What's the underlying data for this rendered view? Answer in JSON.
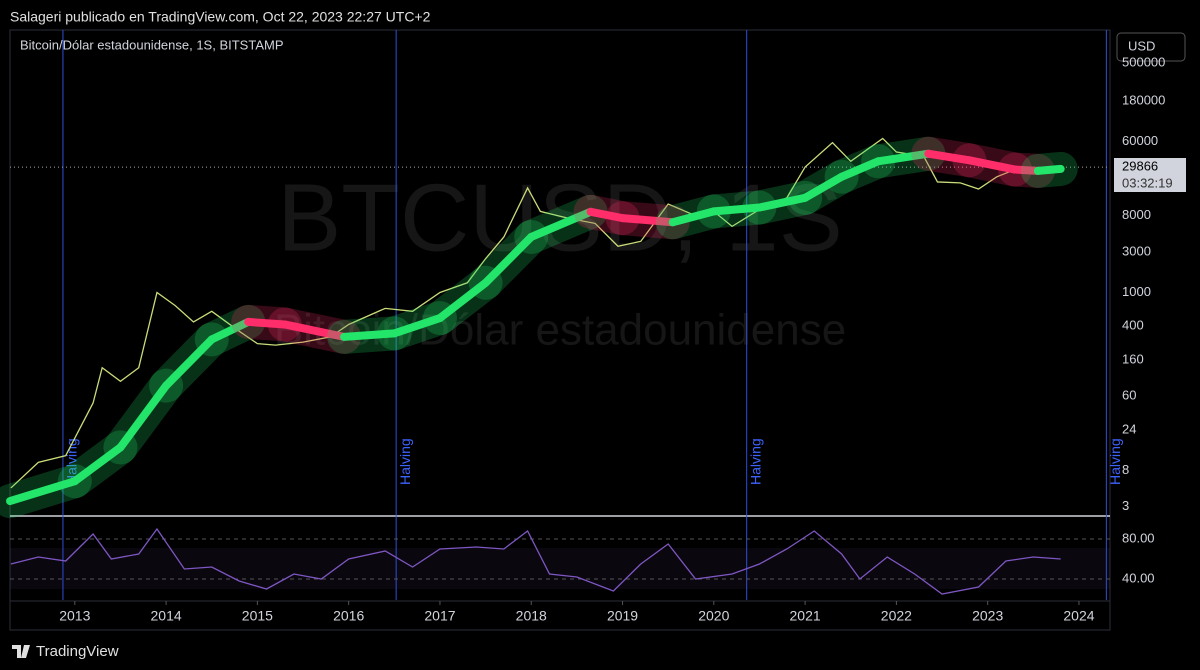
{
  "header": {
    "publisher": "Salageri publicado en TradingView.com, Oct 22, 2023 22:27 UTC+2",
    "symbol": "Bitcoin/Dólar estadounidense, 1S, BITSTAMP",
    "currency": "USD",
    "countdown": "03:32:19",
    "watermark_symbol": "BTCUSD, 1S",
    "watermark_name": "Bitcoin/Dólar estadounidense"
  },
  "footer": {
    "brand": "TradingView"
  },
  "chart_data": [
    {
      "type": "line",
      "log_y": true,
      "xlim": [
        2012.29,
        2024.34
      ],
      "xticks": [
        2013,
        2014,
        2015,
        2016,
        2017,
        2018,
        2019,
        2020,
        2021,
        2022,
        2023,
        2024
      ],
      "ylim": [
        2.4,
        1230000
      ],
      "yticks": [
        500000,
        180000,
        60000,
        8000,
        3000,
        1000,
        400,
        160,
        60,
        24,
        8,
        3
      ],
      "annotations": [
        {
          "x": 2012.87,
          "label": "Halving"
        },
        {
          "x": 2016.52,
          "label": "Halving"
        },
        {
          "x": 2020.36,
          "label": "Halving"
        },
        {
          "x": 2024.3,
          "label": "Halving"
        }
      ],
      "series": [
        {
          "color": "#c8dc78",
          "x": [
            2012.3,
            2012.6,
            2012.9,
            2013.2,
            2013.3,
            2013.5,
            2013.7,
            2013.9,
            2014.1,
            2014.3,
            2014.5,
            2014.8,
            2015.0,
            2015.2,
            2015.5,
            2015.8,
            2016.0,
            2016.4,
            2016.7,
            2017.0,
            2017.3,
            2017.5,
            2017.7,
            2017.96,
            2018.1,
            2018.4,
            2018.7,
            2018.95,
            2019.2,
            2019.5,
            2019.8,
            2020.0,
            2020.2,
            2020.5,
            2020.8,
            2021.0,
            2021.3,
            2021.5,
            2021.85,
            2022.0,
            2022.3,
            2022.45,
            2022.7,
            2022.9,
            2023.1,
            2023.3,
            2023.6,
            2023.8
          ],
          "values": [
            5,
            10,
            12,
            50,
            130,
            90,
            130,
            1000,
            700,
            450,
            600,
            350,
            250,
            240,
            260,
            300,
            420,
            650,
            600,
            1000,
            1300,
            2500,
            4500,
            17000,
            9000,
            7500,
            6500,
            3500,
            4000,
            11000,
            8000,
            9000,
            6000,
            9500,
            13000,
            30000,
            58000,
            35000,
            65000,
            45000,
            40000,
            20000,
            19500,
            16500,
            23000,
            28000,
            29500,
            29866
          ]
        },
        {
          "x": [
            2012.29,
            2013.0,
            2013.5,
            2014.0,
            2014.5,
            2014.9,
            2015.3,
            2015.95,
            2016.5,
            2017.0,
            2017.5,
            2018.0,
            2018.65,
            2019.0,
            2019.55,
            2020.0,
            2020.5,
            2021.0,
            2021.4,
            2021.8,
            2022.35,
            2022.8,
            2023.3,
            2023.55,
            2023.8
          ],
          "values": [
            3.5,
            6,
            15,
            80,
            280,
            450,
            420,
            300,
            330,
            500,
            1300,
            4500,
            8900,
            7500,
            6700,
            9000,
            10000,
            13000,
            23000,
            35000,
            43000,
            36000,
            28000,
            27000,
            28500
          ],
          "colors": [
            "#22e56a",
            "#22e56a",
            "#22e56a",
            "#22e56a",
            "#22e56a",
            "#ff2d6a",
            "#ff2d6a",
            "#22e56a",
            "#22e56a",
            "#22e56a",
            "#22e56a",
            "#22e56a",
            "#ff2d6a",
            "#ff2d6a",
            "#22e56a",
            "#22e56a",
            "#22e56a",
            "#22e56a",
            "#22e56a",
            "#22e56a",
            "#ff2d6a",
            "#ff2d6a",
            "#ff2d6a",
            "#22e56a",
            "#22e56a"
          ]
        }
      ]
    },
    {
      "type": "line",
      "xlim": [
        2012.29,
        2024.34
      ],
      "ylim": [
        19,
        102
      ],
      "yticks": [
        {
          "value": 80,
          "label": "80.00"
        },
        {
          "value": 40,
          "label": "40.00"
        }
      ],
      "series": [
        {
          "color": "#7e57c2",
          "x": [
            2012.3,
            2012.6,
            2012.9,
            2013.2,
            2013.4,
            2013.7,
            2013.9,
            2014.2,
            2014.5,
            2014.8,
            2015.1,
            2015.4,
            2015.7,
            2016.0,
            2016.4,
            2016.7,
            2017.0,
            2017.4,
            2017.7,
            2017.96,
            2018.2,
            2018.5,
            2018.9,
            2019.2,
            2019.5,
            2019.8,
            2020.2,
            2020.5,
            2020.8,
            2021.1,
            2021.4,
            2021.6,
            2021.9,
            2022.2,
            2022.5,
            2022.9,
            2023.2,
            2023.5,
            2023.8
          ],
          "values": [
            55,
            62,
            58,
            85,
            60,
            65,
            90,
            50,
            52,
            38,
            30,
            45,
            40,
            60,
            68,
            52,
            70,
            72,
            70,
            88,
            45,
            42,
            28,
            55,
            75,
            40,
            45,
            55,
            70,
            88,
            65,
            40,
            62,
            45,
            25,
            32,
            58,
            62,
            60
          ]
        }
      ]
    }
  ]
}
